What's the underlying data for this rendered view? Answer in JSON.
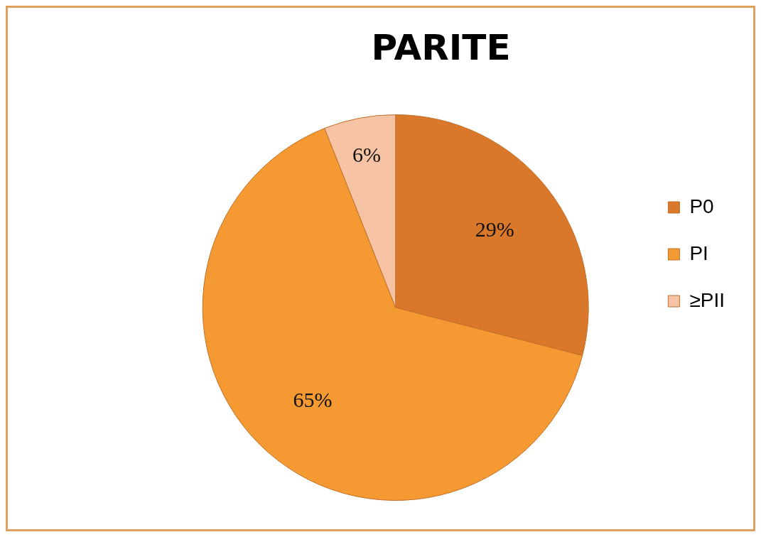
{
  "chart_data": {
    "type": "pie",
    "title": "PARITE",
    "categories": [
      "P0",
      "PI",
      "≥PII"
    ],
    "values": [
      29,
      65,
      6
    ],
    "colors": [
      "#d9782a",
      "#f59a32",
      "#f6c3a4"
    ],
    "value_labels": [
      "29%",
      "65%",
      "6%"
    ],
    "legend": "right"
  }
}
